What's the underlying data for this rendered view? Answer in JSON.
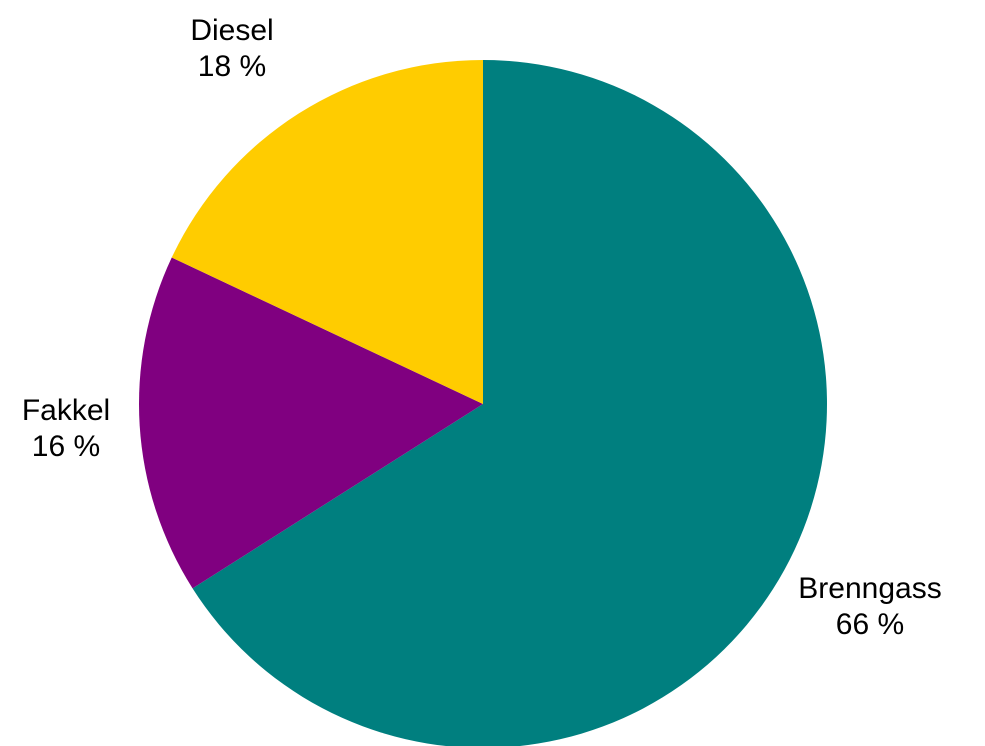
{
  "chart_data": {
    "type": "pie",
    "slices": [
      {
        "name": "Brenngass",
        "value": 66,
        "label": "66 %",
        "color": "#007F7F"
      },
      {
        "name": "Fakkel",
        "value": 16,
        "label": "16 %",
        "color": "#800080"
      },
      {
        "name": "Diesel",
        "value": 18,
        "label": "18 %",
        "color": "#FFCC00"
      }
    ],
    "start_angle": "12 o'clock",
    "direction": "clockwise",
    "legend": "none"
  }
}
